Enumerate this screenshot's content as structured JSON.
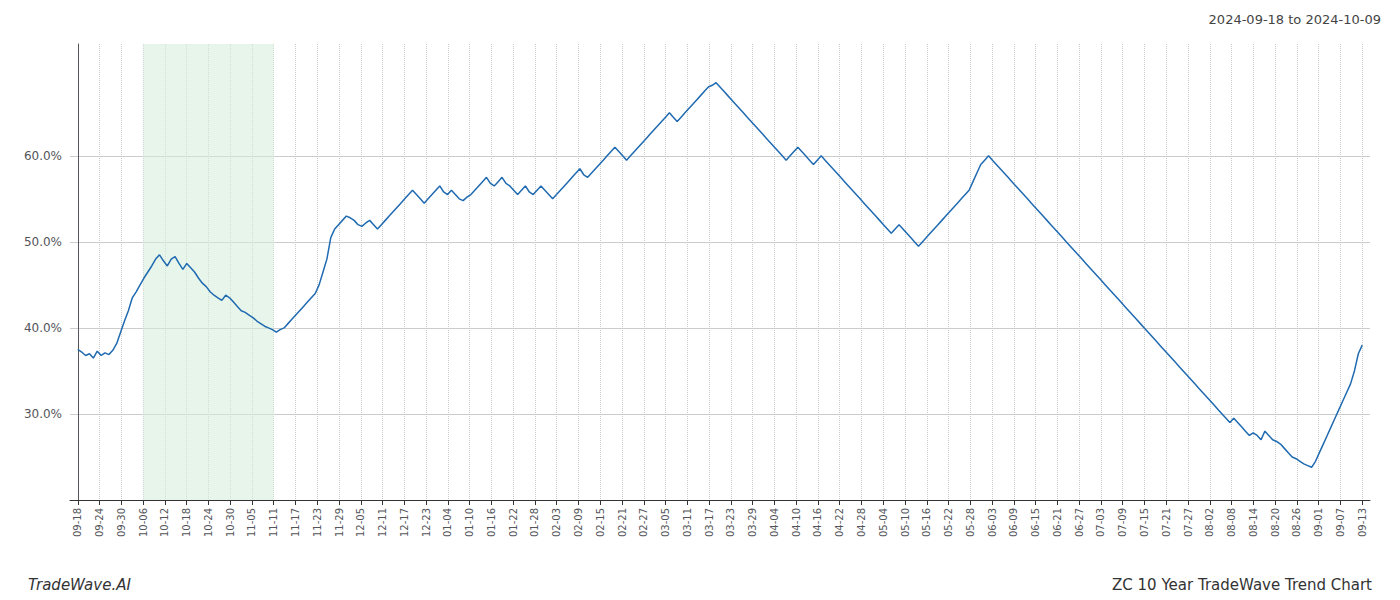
{
  "chart_data": {
    "type": "line",
    "title": "2024-09-18 to 2024-10-09",
    "annotations": [
      "TradeWave.AI",
      "ZC 10 Year TradeWave Trend Chart"
    ],
    "color": "#1f6ab0",
    "grid": true,
    "xlim": [
      -2,
      332
    ],
    "xticks": [
      {
        "value": 0,
        "label": "09-18"
      },
      {
        "value": 5.59322,
        "label": "09-24"
      },
      {
        "value": 11.18644,
        "label": "09-30"
      },
      {
        "value": 16.77966,
        "label": "10-06"
      },
      {
        "value": 22.37288,
        "label": "10-12"
      },
      {
        "value": 27.9661,
        "label": "10-18"
      },
      {
        "value": 33.55932,
        "label": "10-24"
      },
      {
        "value": 39.15254,
        "label": "10-30"
      },
      {
        "value": 44.74576,
        "label": "11-05"
      },
      {
        "value": 50.33898,
        "label": "11-11"
      },
      {
        "value": 55.9322,
        "label": "11-17"
      },
      {
        "value": 61.52542,
        "label": "11-23"
      },
      {
        "value": 67.11864,
        "label": "11-29"
      },
      {
        "value": 72.71186,
        "label": "12-05"
      },
      {
        "value": 78.30508,
        "label": "12-11"
      },
      {
        "value": 83.89831,
        "label": "12-17"
      },
      {
        "value": 89.49153,
        "label": "12-23"
      },
      {
        "value": 95.08475,
        "label": "01-04"
      },
      {
        "value": 100.67797,
        "label": "01-10"
      },
      {
        "value": 106.27119,
        "label": "01-16"
      },
      {
        "value": 111.86441,
        "label": "01-22"
      },
      {
        "value": 117.45763,
        "label": "01-28"
      },
      {
        "value": 123.05085,
        "label": "02-03"
      },
      {
        "value": 128.64407,
        "label": "02-09"
      },
      {
        "value": 134.23729,
        "label": "02-15"
      },
      {
        "value": 139.83051,
        "label": "02-21"
      },
      {
        "value": 145.42373,
        "label": "02-27"
      },
      {
        "value": 151.01695,
        "label": "03-05"
      },
      {
        "value": 156.61017,
        "label": "03-11"
      },
      {
        "value": 162.20339,
        "label": "03-17"
      },
      {
        "value": 167.79661,
        "label": "03-23"
      },
      {
        "value": 173.38983,
        "label": "03-29"
      },
      {
        "value": 178.98305,
        "label": "04-04"
      },
      {
        "value": 184.57627,
        "label": "04-10"
      },
      {
        "value": 190.16949,
        "label": "04-16"
      },
      {
        "value": 195.76271,
        "label": "04-22"
      },
      {
        "value": 201.35593,
        "label": "04-28"
      },
      {
        "value": 206.94915,
        "label": "05-04"
      },
      {
        "value": 212.54237,
        "label": "05-10"
      },
      {
        "value": 218.13559,
        "label": "05-16"
      },
      {
        "value": 223.72881,
        "label": "05-22"
      },
      {
        "value": 229.32203,
        "label": "05-28"
      },
      {
        "value": 234.91525,
        "label": "06-03"
      },
      {
        "value": 240.50847,
        "label": "06-09"
      },
      {
        "value": 246.10169,
        "label": "06-15"
      },
      {
        "value": 251.69492,
        "label": "06-21"
      },
      {
        "value": 257.28814,
        "label": "06-27"
      },
      {
        "value": 262.88136,
        "label": "07-03"
      },
      {
        "value": 268.47458,
        "label": "07-09"
      },
      {
        "value": 274.0678,
        "label": "07-15"
      },
      {
        "value": 279.66102,
        "label": "07-21"
      },
      {
        "value": 285.25424,
        "label": "07-27"
      },
      {
        "value": 290.84746,
        "label": "08-02"
      },
      {
        "value": 296.44068,
        "label": "08-08"
      },
      {
        "value": 302.0339,
        "label": "08-14"
      },
      {
        "value": 307.62712,
        "label": "08-20"
      },
      {
        "value": 313.22034,
        "label": "08-26"
      },
      {
        "value": 318.81356,
        "label": "09-01"
      },
      {
        "value": 324.40678,
        "label": "09-07"
      },
      {
        "value": 330,
        "label": "09-13"
      }
    ],
    "ylim": [
      20,
      73
    ],
    "yticks": [
      {
        "value": 30,
        "label": "30.0%"
      },
      {
        "value": 40,
        "label": "40.0%"
      },
      {
        "value": 50,
        "label": "50.0%"
      },
      {
        "value": 60,
        "label": "60.0%"
      }
    ],
    "shade": {
      "from": 16.77966,
      "to": 50.33898,
      "color": "#d4edda"
    },
    "values": [
      37.5,
      37.2,
      36.8,
      37.0,
      36.5,
      37.3,
      36.8,
      37.1,
      36.9,
      37.4,
      38.2,
      39.5,
      40.8,
      42.0,
      43.5,
      44.2,
      45.0,
      45.8,
      46.5,
      47.2,
      48.0,
      48.5,
      47.8,
      47.2,
      48.0,
      48.3,
      47.5,
      46.8,
      47.5,
      47.0,
      46.5,
      45.8,
      45.2,
      44.8,
      44.2,
      43.8,
      43.5,
      43.2,
      43.8,
      43.5,
      43.0,
      42.5,
      42.0,
      41.8,
      41.5,
      41.2,
      40.8,
      40.5,
      40.2,
      40.0,
      39.8,
      39.5,
      39.8,
      40.0,
      40.5,
      41.0,
      41.5,
      42.0,
      42.5,
      43.0,
      43.5,
      44.0,
      45.0,
      46.5,
      48.0,
      50.5,
      51.5,
      52.0,
      52.5,
      53.0,
      52.8,
      52.5,
      52.0,
      51.8,
      52.2,
      52.5,
      52.0,
      51.5,
      52.0,
      52.5,
      53.0,
      53.5,
      54.0,
      54.5,
      55.0,
      55.5,
      56.0,
      55.5,
      55.0,
      54.5,
      55.0,
      55.5,
      56.0,
      56.5,
      55.8,
      55.5,
      56.0,
      55.5,
      55.0,
      54.8,
      55.2,
      55.5,
      56.0,
      56.5,
      57.0,
      57.5,
      56.8,
      56.5,
      57.0,
      57.5,
      56.8,
      56.5,
      56.0,
      55.5,
      56.0,
      56.5,
      55.8,
      55.5,
      56.0,
      56.5,
      56.0,
      55.5,
      55.0,
      55.5,
      56.0,
      56.5,
      57.0,
      57.5,
      58.0,
      58.5,
      57.8,
      57.5,
      58.0,
      58.5,
      59.0,
      59.5,
      60.0,
      60.5,
      61.0,
      60.5,
      60.0,
      59.5,
      60.0,
      60.5,
      61.0,
      61.5,
      62.0,
      62.5,
      63.0,
      63.5,
      64.0,
      64.5,
      65.0,
      64.5,
      64.0,
      64.5,
      65.0,
      65.5,
      66.0,
      66.5,
      67.0,
      67.5,
      68.0,
      68.2,
      68.5,
      68.0,
      67.5,
      67.0,
      66.5,
      66.0,
      65.5,
      65.0,
      64.5,
      64.0,
      63.5,
      63.0,
      62.5,
      62.0,
      61.5,
      61.0,
      60.5,
      60.0,
      59.5,
      60.0,
      60.5,
      61.0,
      60.5,
      60.0,
      59.5,
      59.0,
      59.5,
      60.0,
      59.5,
      59.0,
      58.5,
      58.0,
      57.5,
      57.0,
      56.5,
      56.0,
      55.5,
      55.0,
      54.5,
      54.0,
      53.5,
      53.0,
      52.5,
      52.0,
      51.5,
      51.0,
      51.5,
      52.0,
      51.5,
      51.0,
      50.5,
      50.0,
      49.5,
      50.0,
      50.5,
      51.0,
      51.5,
      52.0,
      52.5,
      53.0,
      53.5,
      54.0,
      54.5,
      55.0,
      55.5,
      56.0,
      57.0,
      58.0,
      59.0,
      59.5,
      60.0,
      59.5,
      59.0,
      58.5,
      58.0,
      57.5,
      57.0,
      56.5,
      56.0,
      55.5,
      55.0,
      54.5,
      54.0,
      53.5,
      53.0,
      52.5,
      52.0,
      51.5,
      51.0,
      50.5,
      50.0,
      49.5,
      49.0,
      48.5,
      48.0,
      47.5,
      47.0,
      46.5,
      46.0,
      45.5,
      45.0,
      44.5,
      44.0,
      43.5,
      43.0,
      42.5,
      42.0,
      41.5,
      41.0,
      40.5,
      40.0,
      39.5,
      39.0,
      38.5,
      38.0,
      37.5,
      37.0,
      36.5,
      36.0,
      35.5,
      35.0,
      34.5,
      34.0,
      33.5,
      33.0,
      32.5,
      32.0,
      31.5,
      31.0,
      30.5,
      30.0,
      29.5,
      29.0,
      29.5,
      29.0,
      28.5,
      28.0,
      27.5,
      27.8,
      27.5,
      27.0,
      28.0,
      27.5,
      27.0,
      26.8,
      26.5,
      26.0,
      25.5,
      25.0,
      24.8,
      24.5,
      24.2,
      24.0,
      23.8,
      24.5,
      25.5,
      26.5,
      27.5,
      28.5,
      29.5,
      30.5,
      31.5,
      32.5,
      33.5,
      35.0,
      37.0,
      38.0
    ]
  }
}
